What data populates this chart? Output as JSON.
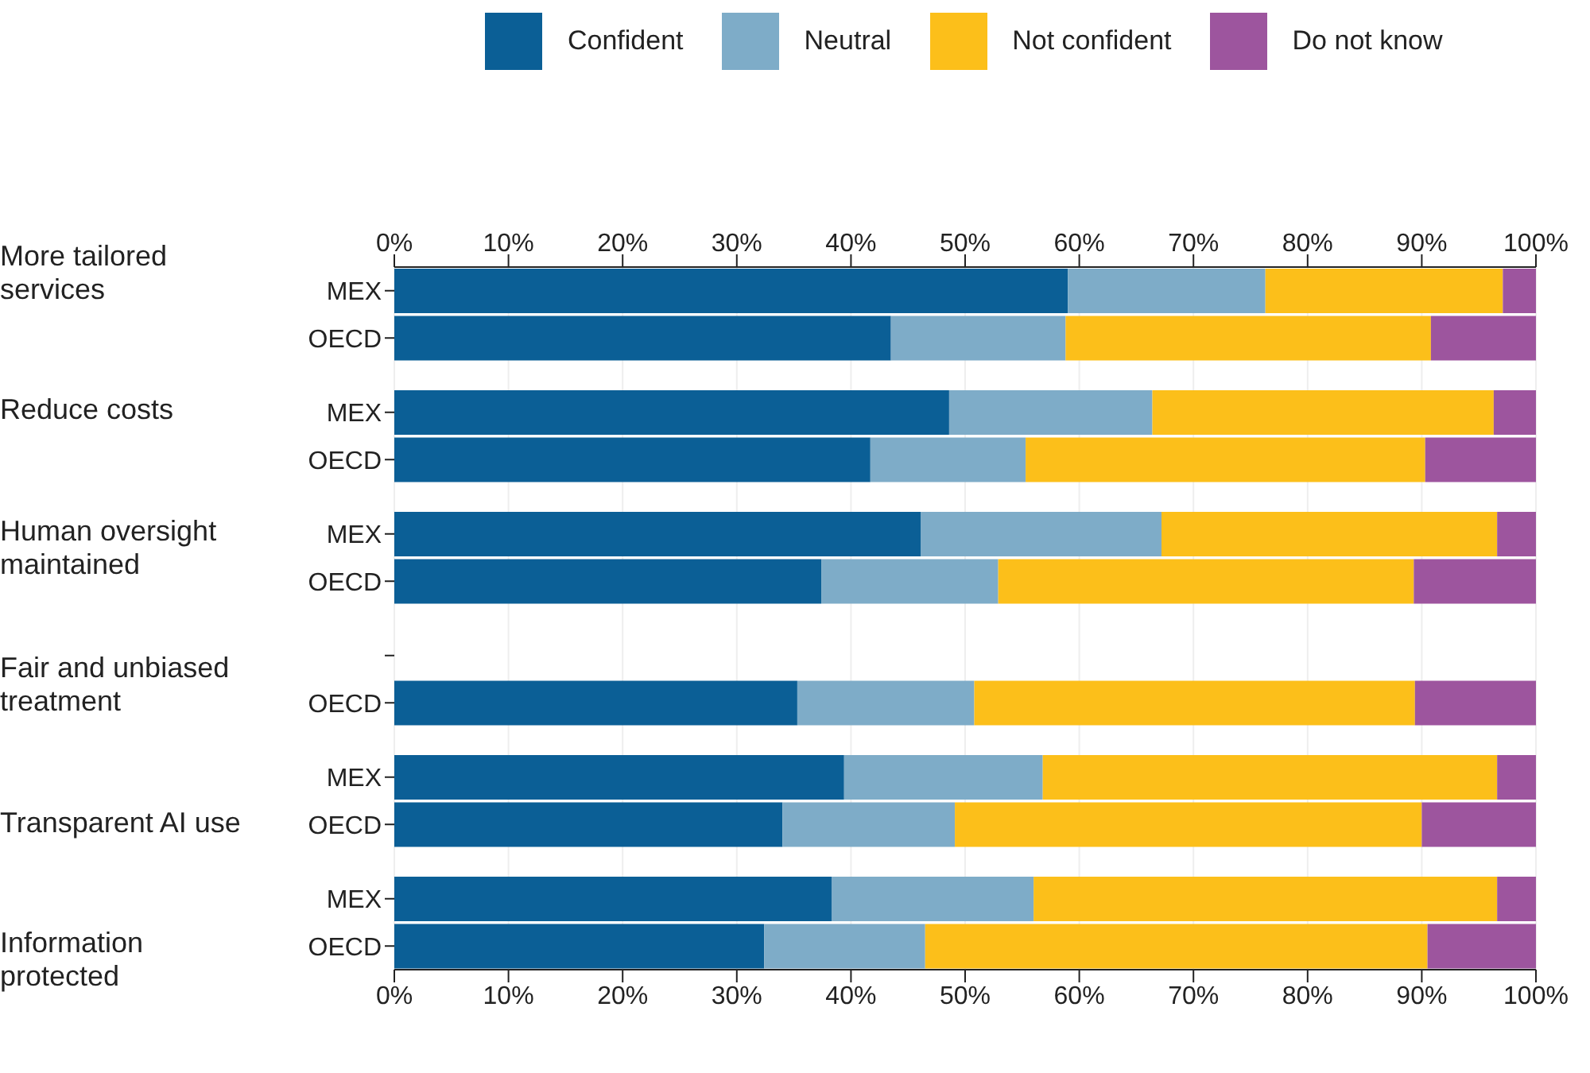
{
  "chart_data": {
    "type": "bar",
    "orientation": "horizontal",
    "stacked": true,
    "legend": "top",
    "grid": "x",
    "categories": [
      "MEX",
      "OECD",
      "MEX",
      "OECD",
      "MEX",
      "OECD",
      null,
      "OECD",
      "MEX",
      "OECD",
      "MEX",
      "OECD"
    ],
    "annotations": [
      "More tailored services",
      "Reduce costs",
      "Human oversight maintained",
      "Fair and unbiased treatment",
      "Transparent AI use",
      "Information protected"
    ],
    "series": [
      {
        "name": "Confident",
        "color": "#0b5f96",
        "values": [
          59.0,
          43.5,
          48.6,
          41.7,
          46.1,
          37.4,
          null,
          35.3,
          39.4,
          34.0,
          38.3,
          32.4
        ]
      },
      {
        "name": "Neutral",
        "color": "#7eacc8",
        "values": [
          17.3,
          15.3,
          17.8,
          13.6,
          21.1,
          15.5,
          null,
          15.5,
          17.4,
          15.1,
          17.7,
          14.1
        ]
      },
      {
        "name": "Not confident",
        "color": "#fcbf1a",
        "values": [
          20.8,
          32.0,
          29.9,
          35.0,
          29.4,
          36.4,
          null,
          38.6,
          39.8,
          40.9,
          40.6,
          44.0
        ]
      },
      {
        "name": "Do not know",
        "color": "#9d559e",
        "values": [
          2.9,
          9.2,
          3.7,
          9.7,
          3.4,
          10.7,
          null,
          10.6,
          3.4,
          10.0,
          3.4,
          9.5
        ]
      }
    ],
    "xlim": [
      0,
      100
    ],
    "xticks": [
      {
        "value": 0,
        "label": "0%"
      },
      {
        "value": 10,
        "label": "10%"
      },
      {
        "value": 20,
        "label": "20%"
      },
      {
        "value": 30,
        "label": "30%"
      },
      {
        "value": 40,
        "label": "40%"
      },
      {
        "value": 50,
        "label": "50%"
      },
      {
        "value": 60,
        "label": "60%"
      },
      {
        "value": 70,
        "label": "70%"
      },
      {
        "value": 80,
        "label": "80%"
      },
      {
        "value": 90,
        "label": "90%"
      },
      {
        "value": 100,
        "label": "100%"
      }
    ],
    "x2lim": [
      0,
      100
    ],
    "x2ticks": [
      {
        "value": 0,
        "label": "0%"
      },
      {
        "value": 10,
        "label": "10%"
      },
      {
        "value": 20,
        "label": "20%"
      },
      {
        "value": 30,
        "label": "30%"
      },
      {
        "value": 40,
        "label": "40%"
      },
      {
        "value": 50,
        "label": "50%"
      },
      {
        "value": 60,
        "label": "60%"
      },
      {
        "value": 70,
        "label": "70%"
      },
      {
        "value": 80,
        "label": "80%"
      },
      {
        "value": 90,
        "label": "90%"
      },
      {
        "value": 100,
        "label": "100%"
      }
    ]
  }
}
